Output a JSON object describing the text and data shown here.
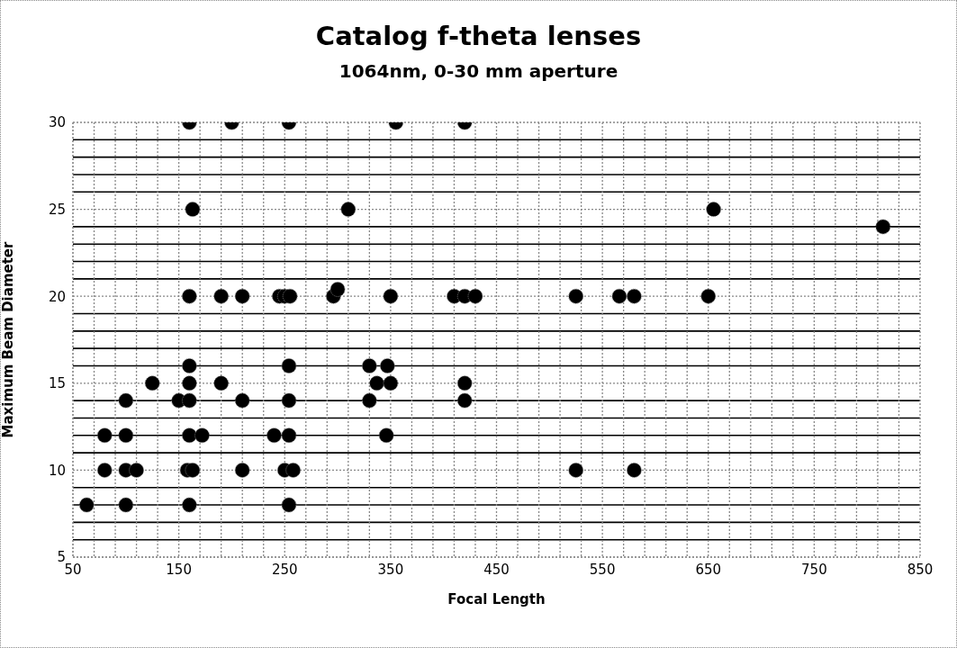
{
  "chart_data": {
    "type": "scatter",
    "title": "Catalog f-theta lenses",
    "subtitle": "1064nm, 0-30 mm aperture",
    "xlabel": "Focal Length",
    "ylabel": "Maximum Beam Diameter",
    "x": [
      160,
      200,
      254,
      355,
      420,
      163,
      310,
      655,
      815,
      160,
      190,
      210,
      245,
      250,
      255,
      296,
      300,
      350,
      410,
      420,
      430,
      525,
      566,
      580,
      650,
      160,
      254,
      330,
      347,
      125,
      160,
      190,
      337,
      350,
      420,
      100,
      150,
      160,
      210,
      254,
      330,
      420,
      80,
      100,
      160,
      172,
      240,
      254,
      346,
      80,
      100,
      110,
      158,
      163,
      210,
      250,
      258,
      525,
      580,
      63,
      100,
      160,
      254
    ],
    "values": [
      30,
      30,
      30,
      30,
      30,
      25,
      25,
      25,
      24,
      20,
      20,
      20,
      20,
      20,
      20,
      20,
      20.4,
      20,
      20,
      20,
      20,
      20,
      20,
      20,
      20,
      16,
      16,
      16,
      16,
      15,
      15,
      15,
      15,
      15,
      15,
      14,
      14,
      14,
      14,
      14,
      14,
      14,
      12,
      12,
      12,
      12,
      12,
      12,
      12,
      10,
      10,
      10,
      10,
      10,
      10,
      10,
      10,
      10,
      10,
      8,
      8,
      8,
      8
    ],
    "color": "#000000",
    "marker": "circle",
    "grid": true,
    "xlim": [
      50,
      850
    ],
    "xticks": [
      50,
      {
        "value": 70,
        "label": null
      },
      {
        "value": 90,
        "label": null
      },
      {
        "value": 110,
        "label": null
      },
      {
        "value": 130,
        "label": null
      },
      150,
      {
        "value": 170,
        "label": null
      },
      {
        "value": 190,
        "label": null
      },
      {
        "value": 210,
        "label": null
      },
      {
        "value": 230,
        "label": null
      },
      250,
      {
        "value": 270,
        "label": null
      },
      {
        "value": 290,
        "label": null
      },
      {
        "value": 310,
        "label": null
      },
      {
        "value": 330,
        "label": null
      },
      350,
      {
        "value": 370,
        "label": null
      },
      {
        "value": 390,
        "label": null
      },
      {
        "value": 410,
        "label": null
      },
      {
        "value": 430,
        "label": null
      },
      450,
      {
        "value": 470,
        "label": null
      },
      {
        "value": 490,
        "label": null
      },
      {
        "value": 510,
        "label": null
      },
      {
        "value": 530,
        "label": null
      },
      550,
      {
        "value": 570,
        "label": null
      },
      {
        "value": 590,
        "label": null
      },
      {
        "value": 610,
        "label": null
      },
      {
        "value": 630,
        "label": null
      },
      650,
      {
        "value": 670,
        "label": null
      },
      {
        "value": 690,
        "label": null
      },
      {
        "value": 710,
        "label": null
      },
      {
        "value": 730,
        "label": null
      },
      750,
      {
        "value": 770,
        "label": null
      },
      {
        "value": 790,
        "label": null
      },
      {
        "value": 810,
        "label": null
      },
      {
        "value": 830,
        "label": null
      },
      850
    ],
    "ylim": [
      5,
      30
    ],
    "yticks": [
      5,
      {
        "value": 6,
        "label": null
      },
      {
        "value": 7,
        "label": null
      },
      {
        "value": 8,
        "label": null
      },
      {
        "value": 9,
        "label": null
      },
      10,
      {
        "value": 11,
        "label": null
      },
      {
        "value": 12,
        "label": null
      },
      {
        "value": 13,
        "label": null
      },
      {
        "value": 14,
        "label": null
      },
      15,
      {
        "value": 16,
        "label": null
      },
      {
        "value": 17,
        "label": null
      },
      {
        "value": 18,
        "label": null
      },
      {
        "value": 19,
        "label": null
      },
      20,
      {
        "value": 21,
        "label": null
      },
      {
        "value": 22,
        "label": null
      },
      {
        "value": 23,
        "label": null
      },
      {
        "value": 24,
        "label": null
      },
      25,
      {
        "value": 26,
        "label": null
      },
      {
        "value": 27,
        "label": null
      },
      {
        "value": 28,
        "label": null
      },
      {
        "value": 29,
        "label": null
      },
      30
    ]
  }
}
